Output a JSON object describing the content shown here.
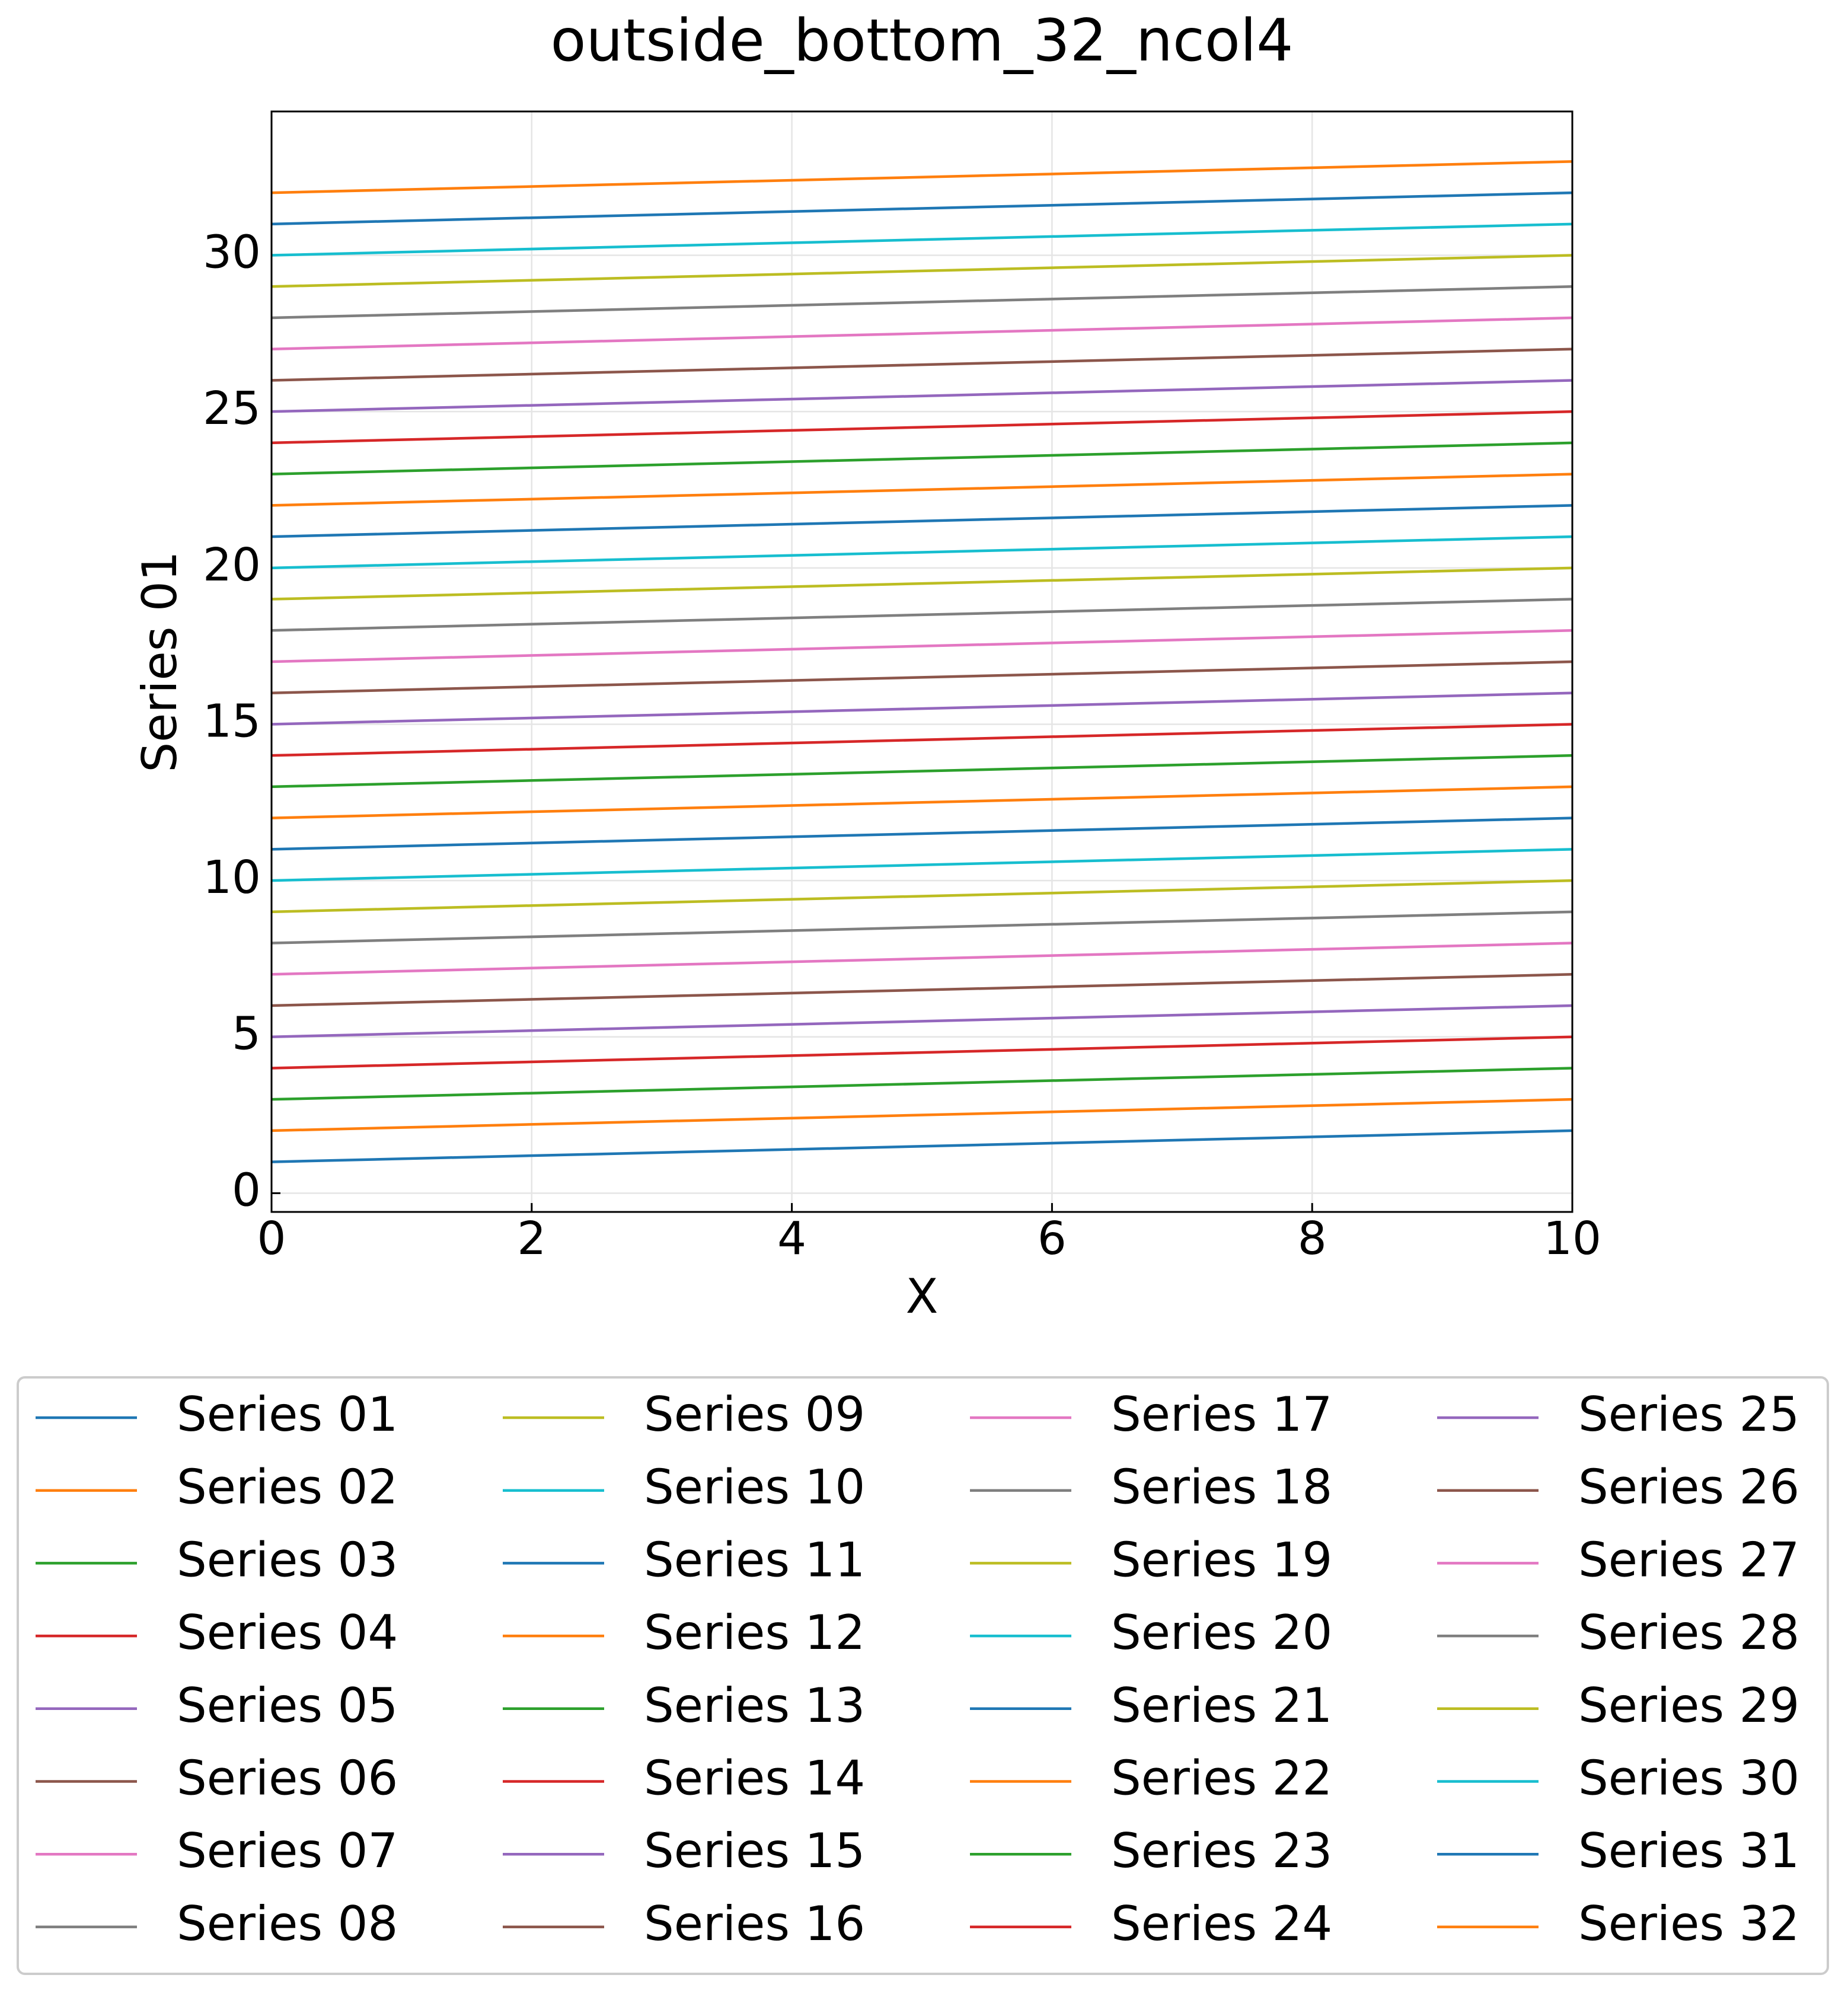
{
  "chart_data": {
    "type": "line",
    "title": "outside_bottom_32_ncol4",
    "x_label": "X",
    "y_label": "Series 01",
    "x": [
      0,
      10
    ],
    "xlim": [
      0,
      10
    ],
    "xticks": [
      0,
      2,
      4,
      6,
      8,
      10
    ],
    "ylim": [
      -0.6,
      34.6
    ],
    "yticks": [
      0,
      5,
      10,
      15,
      20,
      25,
      30
    ],
    "grid": true,
    "legend": "outside bottom",
    "legend_columns": 4,
    "series": [
      {
        "name": "Series 01",
        "color": "#1f77b4",
        "values": [
          1,
          2
        ]
      },
      {
        "name": "Series 02",
        "color": "#ff7f0e",
        "values": [
          2,
          3
        ]
      },
      {
        "name": "Series 03",
        "color": "#2ca02c",
        "values": [
          3,
          4
        ]
      },
      {
        "name": "Series 04",
        "color": "#d62728",
        "values": [
          4,
          5
        ]
      },
      {
        "name": "Series 05",
        "color": "#9467bd",
        "values": [
          5,
          6
        ]
      },
      {
        "name": "Series 06",
        "color": "#8c564b",
        "values": [
          6,
          7
        ]
      },
      {
        "name": "Series 07",
        "color": "#e377c2",
        "values": [
          7,
          8
        ]
      },
      {
        "name": "Series 08",
        "color": "#7f7f7f",
        "values": [
          8,
          9
        ]
      },
      {
        "name": "Series 09",
        "color": "#bcbd22",
        "values": [
          9,
          10
        ]
      },
      {
        "name": "Series 10",
        "color": "#17becf",
        "values": [
          10,
          11
        ]
      },
      {
        "name": "Series 11",
        "color": "#1f77b4",
        "values": [
          11,
          12
        ]
      },
      {
        "name": "Series 12",
        "color": "#ff7f0e",
        "values": [
          12,
          13
        ]
      },
      {
        "name": "Series 13",
        "color": "#2ca02c",
        "values": [
          13,
          14
        ]
      },
      {
        "name": "Series 14",
        "color": "#d62728",
        "values": [
          14,
          15
        ]
      },
      {
        "name": "Series 15",
        "color": "#9467bd",
        "values": [
          15,
          16
        ]
      },
      {
        "name": "Series 16",
        "color": "#8c564b",
        "values": [
          16,
          17
        ]
      },
      {
        "name": "Series 17",
        "color": "#e377c2",
        "values": [
          17,
          18
        ]
      },
      {
        "name": "Series 18",
        "color": "#7f7f7f",
        "values": [
          18,
          19
        ]
      },
      {
        "name": "Series 19",
        "color": "#bcbd22",
        "values": [
          19,
          20
        ]
      },
      {
        "name": "Series 20",
        "color": "#17becf",
        "values": [
          20,
          21
        ]
      },
      {
        "name": "Series 21",
        "color": "#1f77b4",
        "values": [
          21,
          22
        ]
      },
      {
        "name": "Series 22",
        "color": "#ff7f0e",
        "values": [
          22,
          23
        ]
      },
      {
        "name": "Series 23",
        "color": "#2ca02c",
        "values": [
          23,
          24
        ]
      },
      {
        "name": "Series 24",
        "color": "#d62728",
        "values": [
          24,
          25
        ]
      },
      {
        "name": "Series 25",
        "color": "#9467bd",
        "values": [
          25,
          26
        ]
      },
      {
        "name": "Series 26",
        "color": "#8c564b",
        "values": [
          26,
          27
        ]
      },
      {
        "name": "Series 27",
        "color": "#e377c2",
        "values": [
          27,
          28
        ]
      },
      {
        "name": "Series 28",
        "color": "#7f7f7f",
        "values": [
          28,
          29
        ]
      },
      {
        "name": "Series 29",
        "color": "#bcbd22",
        "values": [
          29,
          30
        ]
      },
      {
        "name": "Series 30",
        "color": "#17becf",
        "values": [
          30,
          31
        ]
      },
      {
        "name": "Series 31",
        "color": "#1f77b4",
        "values": [
          31,
          32
        ]
      },
      {
        "name": "Series 32",
        "color": "#ff7f0e",
        "values": [
          32,
          33
        ]
      }
    ]
  }
}
